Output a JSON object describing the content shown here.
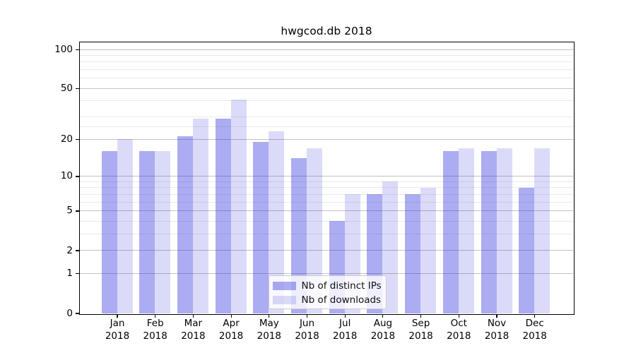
{
  "title": "hwgcod.db 2018",
  "chart_data": {
    "type": "bar",
    "title": "hwgcod.db 2018",
    "categories": [
      "Jan 2018",
      "Feb 2018",
      "Mar 2018",
      "Apr 2018",
      "May 2018",
      "Jun 2018",
      "Jul 2018",
      "Aug 2018",
      "Sep 2018",
      "Oct 2018",
      "Nov 2018",
      "Dec 2018"
    ],
    "x_tick_month": [
      "Jan",
      "Feb",
      "Mar",
      "Apr",
      "May",
      "Jun",
      "Jul",
      "Aug",
      "Sep",
      "Oct",
      "Nov",
      "Dec"
    ],
    "x_tick_year": "2018",
    "series": [
      {
        "name": "Nb of distinct IPs",
        "values": [
          16,
          16,
          21,
          29,
          19,
          14,
          4,
          7,
          7,
          16,
          16,
          8
        ],
        "color": "rgba(30,30,220,0.37)"
      },
      {
        "name": "Nb of downloads",
        "values": [
          20,
          16,
          29,
          41,
          23,
          17,
          7,
          9,
          8,
          17,
          17,
          17
        ],
        "color": "rgba(30,30,220,0.16)"
      }
    ],
    "yscale": "log(1+y)",
    "ylim": [
      0,
      114
    ],
    "y_major_ticks": [
      100,
      50,
      20,
      10,
      5,
      2,
      1,
      0
    ],
    "y_minor_gridlines": [
      3,
      4,
      6,
      7,
      8,
      9,
      25,
      30,
      40,
      60,
      70,
      80,
      90
    ],
    "legend_position": "lower center",
    "grid": true
  },
  "style": {
    "major_grid_color": "#c3c3c3",
    "minor_grid_color": "#ebebeb",
    "axis_color": "#000000",
    "background": "#ffffff"
  }
}
